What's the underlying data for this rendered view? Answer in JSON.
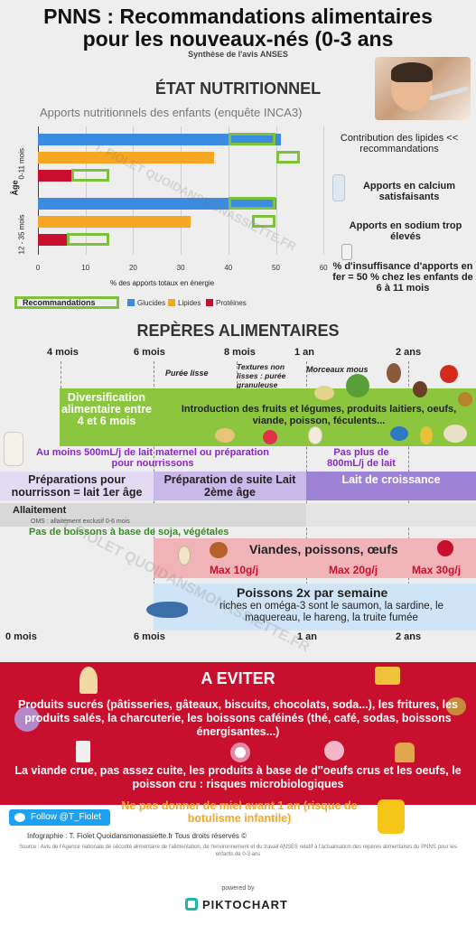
{
  "header": {
    "title_line1": "PNNS : Recommandations alimentaires",
    "title_line2": "pour les nouveaux-nés (0-3 ans",
    "subtitle": "Synthèse de l'avis ANSES"
  },
  "etat": {
    "heading": "ÉTAT NUTRITIONNEL",
    "chart_title": "Apports nutritionnels des enfants (enquête INCA3)",
    "side_notes": [
      "Contribution des lipides << recommandations",
      "Apports en calcium satisfaisants",
      "Apports en sodium trop élevés",
      "% d'insuffisance d'apports en fer = 50 % chez les enfants de 6 à 11 mois"
    ]
  },
  "chart_data": {
    "type": "bar",
    "orientation": "horizontal",
    "title": "Apports nutritionnels des enfants (enquête INCA3)",
    "xlabel": "% des apports totaux en énergie",
    "ylabel": "Âge",
    "xlim": [
      0,
      60
    ],
    "xticks": [
      "0",
      "10",
      "20",
      "30",
      "40",
      "50",
      "60"
    ],
    "categories": [
      "0-11 mois",
      "12 - 35 mois"
    ],
    "series": [
      {
        "name": "Glucides",
        "color": "#3b8be0",
        "values": [
          51,
          50
        ]
      },
      {
        "name": "Lipides",
        "color": "#f5a623",
        "values": [
          37,
          32
        ]
      },
      {
        "name": "Protéines",
        "color": "#c8102e",
        "values": [
          7,
          6
        ]
      }
    ],
    "recommandations": {
      "name": "Recommandations",
      "color": "#7ec23c",
      "ranges": [
        [
          [
            40,
            50
          ],
          [
            50,
            55
          ],
          [
            7,
            15
          ]
        ],
        [
          [
            40,
            50
          ],
          [
            45,
            50
          ],
          [
            6,
            15
          ]
        ]
      ]
    },
    "legend_position": "bottom",
    "legend_items": [
      "Recommandations",
      "Glucides",
      "Lipides",
      "Protéines"
    ],
    "watermark": "T. FIOLET QUOIDANSMONASSIETTE.FR"
  },
  "reperes": {
    "heading": "REPÈRES ALIMENTAIRES",
    "ages_top": [
      "4 mois",
      "6 mois",
      "8 mois",
      "1 an",
      "2 ans"
    ],
    "textures": [
      "Purée lisse",
      "Textures non lisses : purée granuleuse",
      "Morceaux mous"
    ],
    "diversification": "Diversification alimentaire entre 4 et 6 mois",
    "introduction": "Introduction des fruits et légumes, produits laitiers, oeufs, viande, poisson, féculents...",
    "lait_min": "Au moins 500mL/j de lait maternel ou préparation pour nourrissons",
    "lait_max": "Pas plus de 800mL/j de lait",
    "prep1": "Préparations pour nourrisson = lait 1er âge",
    "prep2": "Préparation de suite Lait 2ème âge",
    "prep3": "Lait de croissance",
    "allaitement": "Allaitement",
    "oms": "OMS : allaitement exclusif 0-6 mois",
    "soja": "Pas de boissons à base de soja, végétales",
    "viandes": "Viandes, poissons, œufs",
    "max": [
      "Max 10g/j",
      "Max 20g/j",
      "Max 30g/j"
    ],
    "poissons_title": "Poissons 2x par semaine",
    "poissons_text": "riches en oméga-3 sont le saumon, la sardine, le maquereau, le hareng, la truite fumée",
    "ages_bottom": [
      "0 mois",
      "6 mois",
      "1 an",
      "2 ans"
    ],
    "watermark": "T. FIOLET QUOIDANSMONASSIETTE.FR"
  },
  "eviter": {
    "heading": "A EVITER",
    "sucres": "Produits sucrés (pâtisseries, gâteaux, biscuits, chocolats, soda...), les fritures, les produits salés, la charcuterie, les boissons caféinés (thé, café, sodas, boissons énergisantes...)",
    "crue": "La viande crue, pas assez cuite, les produits à base de d''oeufs crus et les oeufs, le poisson cru : risques microbiologiques",
    "miel": "Ne pas donner de miel avant 1 an (risque de botulisme infantile)",
    "follow": "Follow @T_Fiolet",
    "credits": "Infographie : T. Fiolet    Quoidansmonassiette.fr    Tous droits réservés ©",
    "source": "Source : Avis de l'Agence nationale de sécurité alimentaire de l'alimentation, de l'environnement et du travail ANSES relatif à l'actualisation des repères alimentaires du PNNS pour les enfants de 0-3 ans"
  },
  "footer": {
    "powered": "powered by",
    "brand": "PIKTOCHART"
  },
  "colors": {
    "glucides": "#3b8be0",
    "lipides": "#f5a623",
    "proteines": "#c8102e",
    "reco": "#7ec23c",
    "lilac": "#c9b9ea",
    "purple": "#9e82d6",
    "pink": "#f0b3b8",
    "light_blue": "#cfe4f6",
    "red_band": "#c8102e"
  }
}
